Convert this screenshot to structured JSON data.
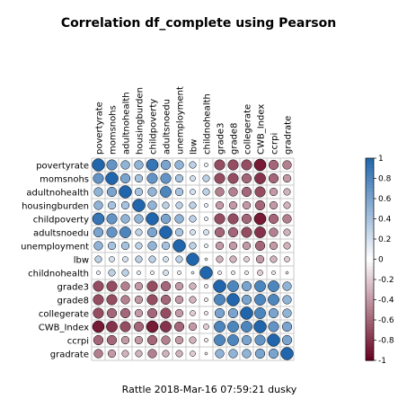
{
  "chart_data": {
    "type": "heatmap",
    "title": "Correlation df_complete using Pearson",
    "caption": "Rattle 2018-Mar-16 07:59:21 dusky",
    "variables": [
      "povertyrate",
      "momsnohs",
      "adultnohealth",
      "housingburden",
      "childpoverty",
      "adultsnoedu",
      "unemployment",
      "lbw",
      "childnohealth",
      "grade3",
      "grade8",
      "collegerate",
      "CWB_Index",
      "ccrpi",
      "gradrate"
    ],
    "matrix": [
      [
        1.0,
        0.7,
        0.5,
        0.5,
        0.9,
        0.6,
        0.5,
        0.3,
        0.1,
        -0.7,
        -0.7,
        -0.7,
        -0.9,
        -0.6,
        -0.5
      ],
      [
        0.7,
        1.0,
        0.6,
        0.4,
        0.7,
        0.7,
        0.4,
        0.2,
        0.3,
        -0.7,
        -0.7,
        -0.6,
        -0.8,
        -0.6,
        -0.4
      ],
      [
        0.5,
        0.6,
        1.0,
        0.4,
        0.5,
        0.8,
        0.4,
        0.2,
        0.3,
        -0.5,
        -0.5,
        -0.6,
        -0.7,
        -0.4,
        -0.3
      ],
      [
        0.5,
        0.4,
        0.4,
        1.0,
        0.5,
        0.3,
        0.3,
        0.3,
        0.1,
        -0.4,
        -0.4,
        -0.4,
        -0.6,
        -0.4,
        -0.3
      ],
      [
        0.9,
        0.7,
        0.5,
        0.5,
        1.0,
        0.6,
        0.5,
        0.3,
        0.1,
        -0.7,
        -0.7,
        -0.6,
        -0.9,
        -0.6,
        -0.5
      ],
      [
        0.6,
        0.7,
        0.8,
        0.3,
        0.6,
        1.0,
        0.4,
        0.2,
        0.2,
        -0.6,
        -0.6,
        -0.7,
        -0.8,
        -0.5,
        -0.3
      ],
      [
        0.5,
        0.4,
        0.4,
        0.3,
        0.5,
        0.4,
        1.0,
        0.3,
        0.1,
        -0.4,
        -0.4,
        -0.4,
        -0.6,
        -0.4,
        -0.3
      ],
      [
        0.3,
        0.2,
        0.2,
        0.3,
        0.3,
        0.2,
        0.3,
        1.0,
        0.05,
        -0.3,
        -0.3,
        -0.2,
        -0.4,
        -0.3,
        -0.2
      ],
      [
        0.1,
        0.3,
        0.3,
        0.1,
        0.1,
        0.2,
        0.1,
        0.05,
        1.0,
        -0.1,
        -0.1,
        -0.1,
        -0.2,
        -0.1,
        -0.05
      ],
      [
        -0.7,
        -0.7,
        -0.5,
        -0.4,
        -0.7,
        -0.6,
        -0.4,
        -0.3,
        -0.1,
        1.0,
        0.8,
        0.6,
        0.8,
        0.8,
        0.5
      ],
      [
        -0.7,
        -0.7,
        -0.5,
        -0.4,
        -0.7,
        -0.6,
        -0.4,
        -0.3,
        -0.1,
        0.8,
        1.0,
        0.6,
        0.8,
        0.8,
        0.5
      ],
      [
        -0.7,
        -0.6,
        -0.6,
        -0.4,
        -0.6,
        -0.7,
        -0.4,
        -0.2,
        -0.1,
        0.6,
        0.6,
        1.0,
        0.8,
        0.6,
        0.5
      ],
      [
        -0.9,
        -0.8,
        -0.7,
        -0.6,
        -0.9,
        -0.8,
        -0.6,
        -0.4,
        -0.2,
        0.8,
        0.8,
        0.8,
        1.0,
        0.7,
        0.6
      ],
      [
        -0.6,
        -0.6,
        -0.4,
        -0.4,
        -0.6,
        -0.5,
        -0.4,
        -0.3,
        -0.1,
        0.8,
        0.8,
        0.6,
        0.7,
        1.0,
        0.6
      ],
      [
        -0.5,
        -0.4,
        -0.3,
        -0.3,
        -0.5,
        -0.3,
        -0.3,
        -0.2,
        -0.05,
        0.5,
        0.5,
        0.5,
        0.6,
        0.6,
        1.0
      ]
    ],
    "colorbar_ticks": [
      "1",
      "0.8",
      "0.6",
      "0.4",
      "0.2",
      "0",
      "-0.2",
      "-0.4",
      "-0.6",
      "-0.8",
      "-1"
    ],
    "colors": {
      "positive": "#2166ac",
      "neutral": "#ffffff",
      "negative": "#67001f",
      "grid": "#c8c8c8"
    },
    "range": [
      -1,
      1
    ]
  }
}
